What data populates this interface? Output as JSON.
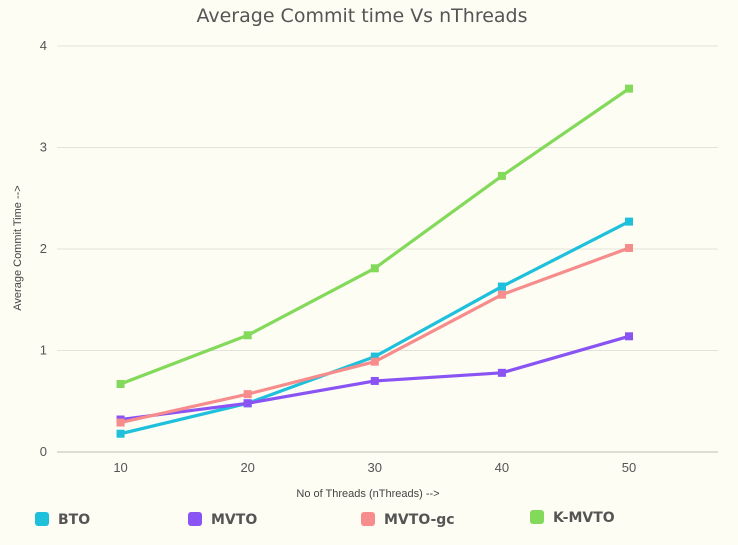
{
  "chart_data": {
    "type": "line",
    "title": "Average Commit time Vs nThreads",
    "xlabel": "No of Threads (nThreads) -->",
    "ylabel": "Average Commit Time -->",
    "x": [
      10,
      20,
      30,
      40,
      50
    ],
    "x_ticks": [
      "10",
      "20",
      "30",
      "40",
      "50"
    ],
    "y_ticks": [
      "0",
      "1",
      "2",
      "3",
      "4"
    ],
    "ylim": [
      0,
      4
    ],
    "grid": true,
    "legend_position": "bottom",
    "series": [
      {
        "name": "BTO",
        "color": "#1ec0dc",
        "values": [
          0.18,
          0.48,
          0.94,
          1.63,
          2.27
        ]
      },
      {
        "name": "MVTO",
        "color": "#8a54f5",
        "values": [
          0.32,
          0.48,
          0.7,
          0.78,
          1.14
        ]
      },
      {
        "name": "MVTO-gc",
        "color": "#f78c8c",
        "values": [
          0.29,
          0.57,
          0.89,
          1.55,
          2.01
        ]
      },
      {
        "name": "K-MVTO",
        "color": "#82d95a",
        "values": [
          0.67,
          1.15,
          1.81,
          2.72,
          3.58
        ]
      }
    ]
  }
}
